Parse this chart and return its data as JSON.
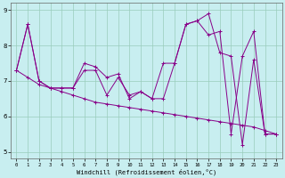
{
  "xlabel": "Windchill (Refroidissement éolien,°C)",
  "background_color": "#c8eef0",
  "grid_color": "#99ccbb",
  "line_color": "#880088",
  "xlim": [
    -0.5,
    23.5
  ],
  "ylim": [
    4.8,
    9.2
  ],
  "yticks": [
    5,
    6,
    7,
    8,
    9
  ],
  "xticks": [
    0,
    1,
    2,
    3,
    4,
    5,
    6,
    7,
    8,
    9,
    10,
    11,
    12,
    13,
    14,
    15,
    16,
    17,
    18,
    19,
    20,
    21,
    22,
    23
  ],
  "line1": [
    7.3,
    8.6,
    7.0,
    6.8,
    6.8,
    6.8,
    7.3,
    7.3,
    6.6,
    7.1,
    6.6,
    6.7,
    6.5,
    6.5,
    7.5,
    8.6,
    8.7,
    8.9,
    7.8,
    7.7,
    5.2,
    7.6,
    5.5,
    5.5
  ],
  "line2": [
    7.3,
    8.6,
    7.0,
    6.8,
    6.8,
    6.8,
    7.5,
    7.4,
    7.1,
    7.2,
    6.5,
    6.7,
    6.5,
    7.5,
    7.5,
    8.6,
    8.7,
    8.3,
    8.4,
    5.5,
    7.7,
    8.4,
    5.5,
    5.5
  ],
  "line3": [
    7.3,
    7.1,
    6.9,
    6.8,
    6.7,
    6.6,
    6.5,
    6.4,
    6.35,
    6.3,
    6.25,
    6.2,
    6.15,
    6.1,
    6.05,
    6.0,
    5.95,
    5.9,
    5.85,
    5.8,
    5.75,
    5.7,
    5.6,
    5.5
  ]
}
